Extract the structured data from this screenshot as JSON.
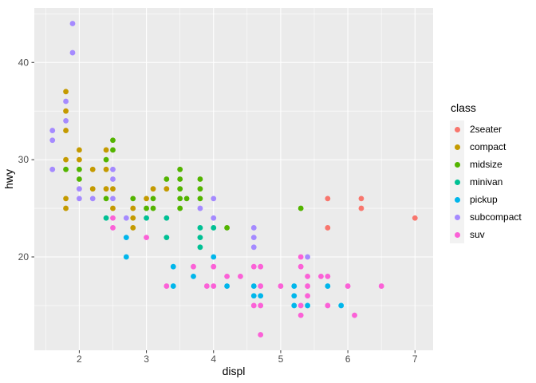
{
  "chart_data": {
    "type": "scatter",
    "title": "",
    "xlabel": "displ",
    "ylabel": "hwy",
    "xlim": [
      1.33,
      7.27
    ],
    "ylim": [
      10.4,
      45.6
    ],
    "x_major_ticks": [
      2,
      3,
      4,
      5,
      6,
      7
    ],
    "y_major_ticks": [
      20,
      30,
      40
    ],
    "x_minor_ticks": [
      1.5,
      2.5,
      3.5,
      4.5,
      5.5,
      6.5
    ],
    "y_minor_ticks": [
      15,
      25,
      35,
      45
    ],
    "grid": true,
    "legend": {
      "title": "class",
      "position": "right",
      "entries": [
        {
          "label": "2seater",
          "color": "#F8766D"
        },
        {
          "label": "compact",
          "color": "#C49A00"
        },
        {
          "label": "midsize",
          "color": "#53B400"
        },
        {
          "label": "minivan",
          "color": "#00C094"
        },
        {
          "label": "pickup",
          "color": "#00B6EB"
        },
        {
          "label": "subcompact",
          "color": "#A58AFF"
        },
        {
          "label": "suv",
          "color": "#FB61D7"
        }
      ]
    },
    "points": [
      [
        1.6,
        29,
        "subcompact"
      ],
      [
        1.6,
        32,
        "subcompact"
      ],
      [
        1.6,
        33,
        "subcompact"
      ],
      [
        1.8,
        25,
        "compact"
      ],
      [
        1.8,
        26,
        "compact"
      ],
      [
        1.8,
        29,
        "midsize"
      ],
      [
        1.8,
        30,
        "compact"
      ],
      [
        1.8,
        33,
        "compact"
      ],
      [
        1.8,
        34,
        "subcompact"
      ],
      [
        1.8,
        35,
        "compact"
      ],
      [
        1.8,
        36,
        "subcompact"
      ],
      [
        1.8,
        37,
        "compact"
      ],
      [
        1.9,
        41,
        "subcompact"
      ],
      [
        1.9,
        44,
        "subcompact"
      ],
      [
        2.0,
        26,
        "subcompact"
      ],
      [
        2.0,
        27,
        "subcompact"
      ],
      [
        2.0,
        28,
        "midsize"
      ],
      [
        2.0,
        29,
        "midsize"
      ],
      [
        2.0,
        30,
        "compact"
      ],
      [
        2.0,
        31,
        "compact"
      ],
      [
        2.2,
        26,
        "subcompact"
      ],
      [
        2.2,
        27,
        "compact"
      ],
      [
        2.2,
        29,
        "compact"
      ],
      [
        2.4,
        24,
        "minivan"
      ],
      [
        2.4,
        26,
        "midsize"
      ],
      [
        2.4,
        27,
        "compact"
      ],
      [
        2.4,
        29,
        "compact"
      ],
      [
        2.4,
        30,
        "midsize"
      ],
      [
        2.4,
        31,
        "compact"
      ],
      [
        2.5,
        23,
        "suv"
      ],
      [
        2.5,
        24,
        "suv"
      ],
      [
        2.5,
        25,
        "compact"
      ],
      [
        2.5,
        26,
        "subcompact"
      ],
      [
        2.5,
        27,
        "compact"
      ],
      [
        2.5,
        28,
        "subcompact"
      ],
      [
        2.5,
        29,
        "subcompact"
      ],
      [
        2.5,
        31,
        "midsize"
      ],
      [
        2.5,
        32,
        "midsize"
      ],
      [
        2.7,
        20,
        "pickup"
      ],
      [
        2.7,
        22,
        "pickup"
      ],
      [
        2.7,
        24,
        "subcompact"
      ],
      [
        2.8,
        23,
        "compact"
      ],
      [
        2.8,
        24,
        "compact"
      ],
      [
        2.8,
        25,
        "compact"
      ],
      [
        2.8,
        26,
        "midsize"
      ],
      [
        3.0,
        22,
        "suv"
      ],
      [
        3.0,
        24,
        "minivan"
      ],
      [
        3.0,
        25,
        "midsize"
      ],
      [
        3.0,
        26,
        "compact"
      ],
      [
        3.1,
        25,
        "midsize"
      ],
      [
        3.1,
        26,
        "midsize"
      ],
      [
        3.1,
        27,
        "compact"
      ],
      [
        3.3,
        17,
        "suv"
      ],
      [
        3.3,
        22,
        "minivan"
      ],
      [
        3.3,
        24,
        "minivan"
      ],
      [
        3.3,
        27,
        "compact"
      ],
      [
        3.3,
        28,
        "midsize"
      ],
      [
        3.4,
        17,
        "pickup"
      ],
      [
        3.4,
        19,
        "pickup"
      ],
      [
        3.5,
        25,
        "midsize"
      ],
      [
        3.5,
        26,
        "midsize"
      ],
      [
        3.5,
        27,
        "midsize"
      ],
      [
        3.5,
        28,
        "midsize"
      ],
      [
        3.5,
        29,
        "midsize"
      ],
      [
        3.6,
        26,
        "midsize"
      ],
      [
        3.7,
        18,
        "pickup"
      ],
      [
        3.7,
        19,
        "suv"
      ],
      [
        3.8,
        21,
        "minivan"
      ],
      [
        3.8,
        22,
        "minivan"
      ],
      [
        3.8,
        23,
        "minivan"
      ],
      [
        3.8,
        25,
        "subcompact"
      ],
      [
        3.8,
        26,
        "midsize"
      ],
      [
        3.8,
        27,
        "midsize"
      ],
      [
        3.8,
        28,
        "midsize"
      ],
      [
        3.9,
        17,
        "suv"
      ],
      [
        4.0,
        17,
        "suv"
      ],
      [
        4.0,
        19,
        "suv"
      ],
      [
        4.0,
        20,
        "pickup"
      ],
      [
        4.0,
        23,
        "minivan"
      ],
      [
        4.0,
        24,
        "subcompact"
      ],
      [
        4.0,
        26,
        "subcompact"
      ],
      [
        4.2,
        17,
        "pickup"
      ],
      [
        4.2,
        18,
        "suv"
      ],
      [
        4.2,
        23,
        "midsize"
      ],
      [
        4.4,
        18,
        "suv"
      ],
      [
        4.6,
        15,
        "suv"
      ],
      [
        4.6,
        16,
        "pickup"
      ],
      [
        4.6,
        17,
        "pickup"
      ],
      [
        4.6,
        19,
        "suv"
      ],
      [
        4.6,
        21,
        "subcompact"
      ],
      [
        4.6,
        22,
        "subcompact"
      ],
      [
        4.6,
        23,
        "subcompact"
      ],
      [
        4.7,
        12,
        "suv"
      ],
      [
        4.7,
        15,
        "suv"
      ],
      [
        4.7,
        16,
        "pickup"
      ],
      [
        4.7,
        17,
        "suv"
      ],
      [
        4.7,
        19,
        "suv"
      ],
      [
        5.0,
        17,
        "suv"
      ],
      [
        5.2,
        15,
        "pickup"
      ],
      [
        5.2,
        16,
        "pickup"
      ],
      [
        5.2,
        17,
        "pickup"
      ],
      [
        5.3,
        14,
        "suv"
      ],
      [
        5.3,
        15,
        "suv"
      ],
      [
        5.3,
        19,
        "suv"
      ],
      [
        5.3,
        20,
        "suv"
      ],
      [
        5.3,
        25,
        "midsize"
      ],
      [
        5.4,
        15,
        "pickup"
      ],
      [
        5.4,
        16,
        "suv"
      ],
      [
        5.4,
        17,
        "suv"
      ],
      [
        5.4,
        18,
        "suv"
      ],
      [
        5.4,
        20,
        "subcompact"
      ],
      [
        5.6,
        18,
        "suv"
      ],
      [
        5.7,
        15,
        "suv"
      ],
      [
        5.7,
        17,
        "pickup"
      ],
      [
        5.7,
        18,
        "suv"
      ],
      [
        5.7,
        23,
        "2seater"
      ],
      [
        5.7,
        26,
        "2seater"
      ],
      [
        5.9,
        15,
        "pickup"
      ],
      [
        6.0,
        17,
        "suv"
      ],
      [
        6.1,
        14,
        "suv"
      ],
      [
        6.2,
        25,
        "2seater"
      ],
      [
        6.2,
        26,
        "2seater"
      ],
      [
        6.5,
        17,
        "suv"
      ],
      [
        7.0,
        24,
        "2seater"
      ]
    ]
  },
  "style": {
    "background": "#FFFFFF",
    "panel_background": "#EBEBEB",
    "grid_color": "#FFFFFF",
    "axis_text_color": "#4D4D4D",
    "axis_title_color": "#000000",
    "tick_mark_color": "#333333",
    "legend_key_background": "#F2F2F2"
  }
}
